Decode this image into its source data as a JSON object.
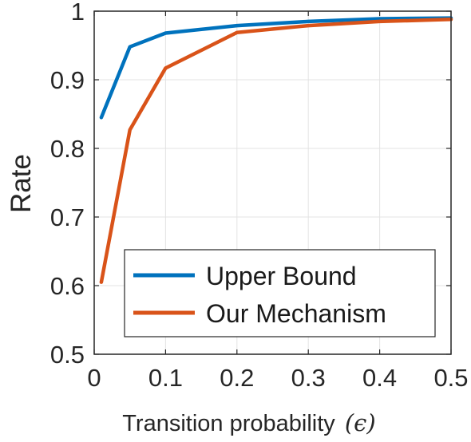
{
  "chart_data": {
    "type": "line",
    "title": "",
    "xlabel": "Transition probability",
    "xlabel_symbol": "(ϵ)",
    "ylabel": "Rate",
    "xlim": [
      0,
      0.5
    ],
    "ylim": [
      0.5,
      1
    ],
    "xticks": [
      0,
      0.1,
      0.2,
      0.3,
      0.4,
      0.5
    ],
    "xtick_labels": [
      "0",
      "0.1",
      "0.2",
      "0.3",
      "0.4",
      "0.5"
    ],
    "yticks": [
      0.5,
      0.6,
      0.7,
      0.8,
      0.9,
      1
    ],
    "ytick_labels": [
      "0.5",
      "0.6",
      "0.7",
      "0.8",
      "0.9",
      "1"
    ],
    "grid": true,
    "legend_position": "bottom-right",
    "series": [
      {
        "name": "Upper Bound",
        "color": "#0072BD",
        "x": [
          0.01,
          0.05,
          0.1,
          0.2,
          0.3,
          0.4,
          0.5
        ],
        "y": [
          0.845,
          0.948,
          0.968,
          0.979,
          0.985,
          0.989,
          0.99
        ]
      },
      {
        "name": "Our Mechanism",
        "color": "#D95319",
        "x": [
          0.01,
          0.05,
          0.1,
          0.2,
          0.3,
          0.4,
          0.5
        ],
        "y": [
          0.605,
          0.827,
          0.917,
          0.969,
          0.979,
          0.985,
          0.988
        ]
      }
    ]
  }
}
